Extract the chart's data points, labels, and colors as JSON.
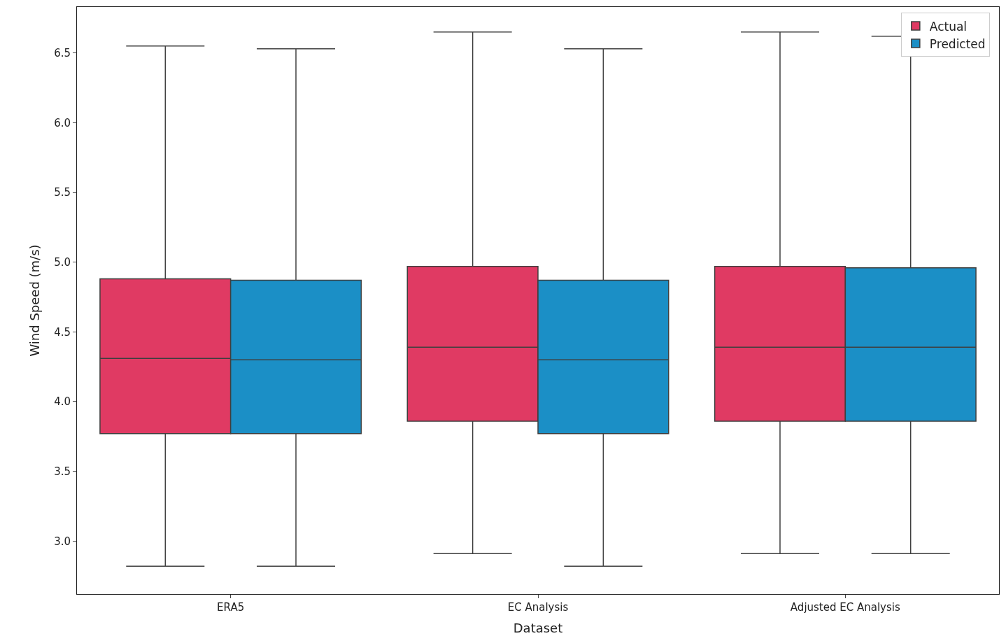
{
  "chart_data": {
    "type": "box",
    "xlabel": "Dataset",
    "ylabel": "Wind Speed (m/s)",
    "categories": [
      "ERA5",
      "EC Analysis",
      "Adjusted EC Analysis"
    ],
    "series": [
      {
        "name": "Actual",
        "color": "#e03a63",
        "boxes": [
          {
            "low": 2.82,
            "q1": 3.77,
            "median": 4.31,
            "q3": 4.88,
            "high": 6.55
          },
          {
            "low": 2.91,
            "q1": 3.86,
            "median": 4.39,
            "q3": 4.97,
            "high": 6.65
          },
          {
            "low": 2.91,
            "q1": 3.86,
            "median": 4.39,
            "q3": 4.97,
            "high": 6.65
          }
        ]
      },
      {
        "name": "Predicted",
        "color": "#1b8fc6",
        "boxes": [
          {
            "low": 2.82,
            "q1": 3.77,
            "median": 4.3,
            "q3": 4.87,
            "high": 6.53
          },
          {
            "low": 2.82,
            "q1": 3.77,
            "median": 4.3,
            "q3": 4.87,
            "high": 6.53
          },
          {
            "low": 2.91,
            "q1": 3.86,
            "median": 4.39,
            "q3": 4.96,
            "high": 6.62
          }
        ]
      }
    ],
    "ylim": [
      2.62,
      6.83
    ],
    "yticks": [
      {
        "value": 3,
        "label": "3.0"
      },
      3.5,
      {
        "value": 4,
        "label": "4.0"
      },
      4.5,
      {
        "value": 5,
        "label": "5.0"
      },
      5.5,
      {
        "value": 6,
        "label": "6.0"
      },
      6.5
    ],
    "legend": "top right"
  }
}
